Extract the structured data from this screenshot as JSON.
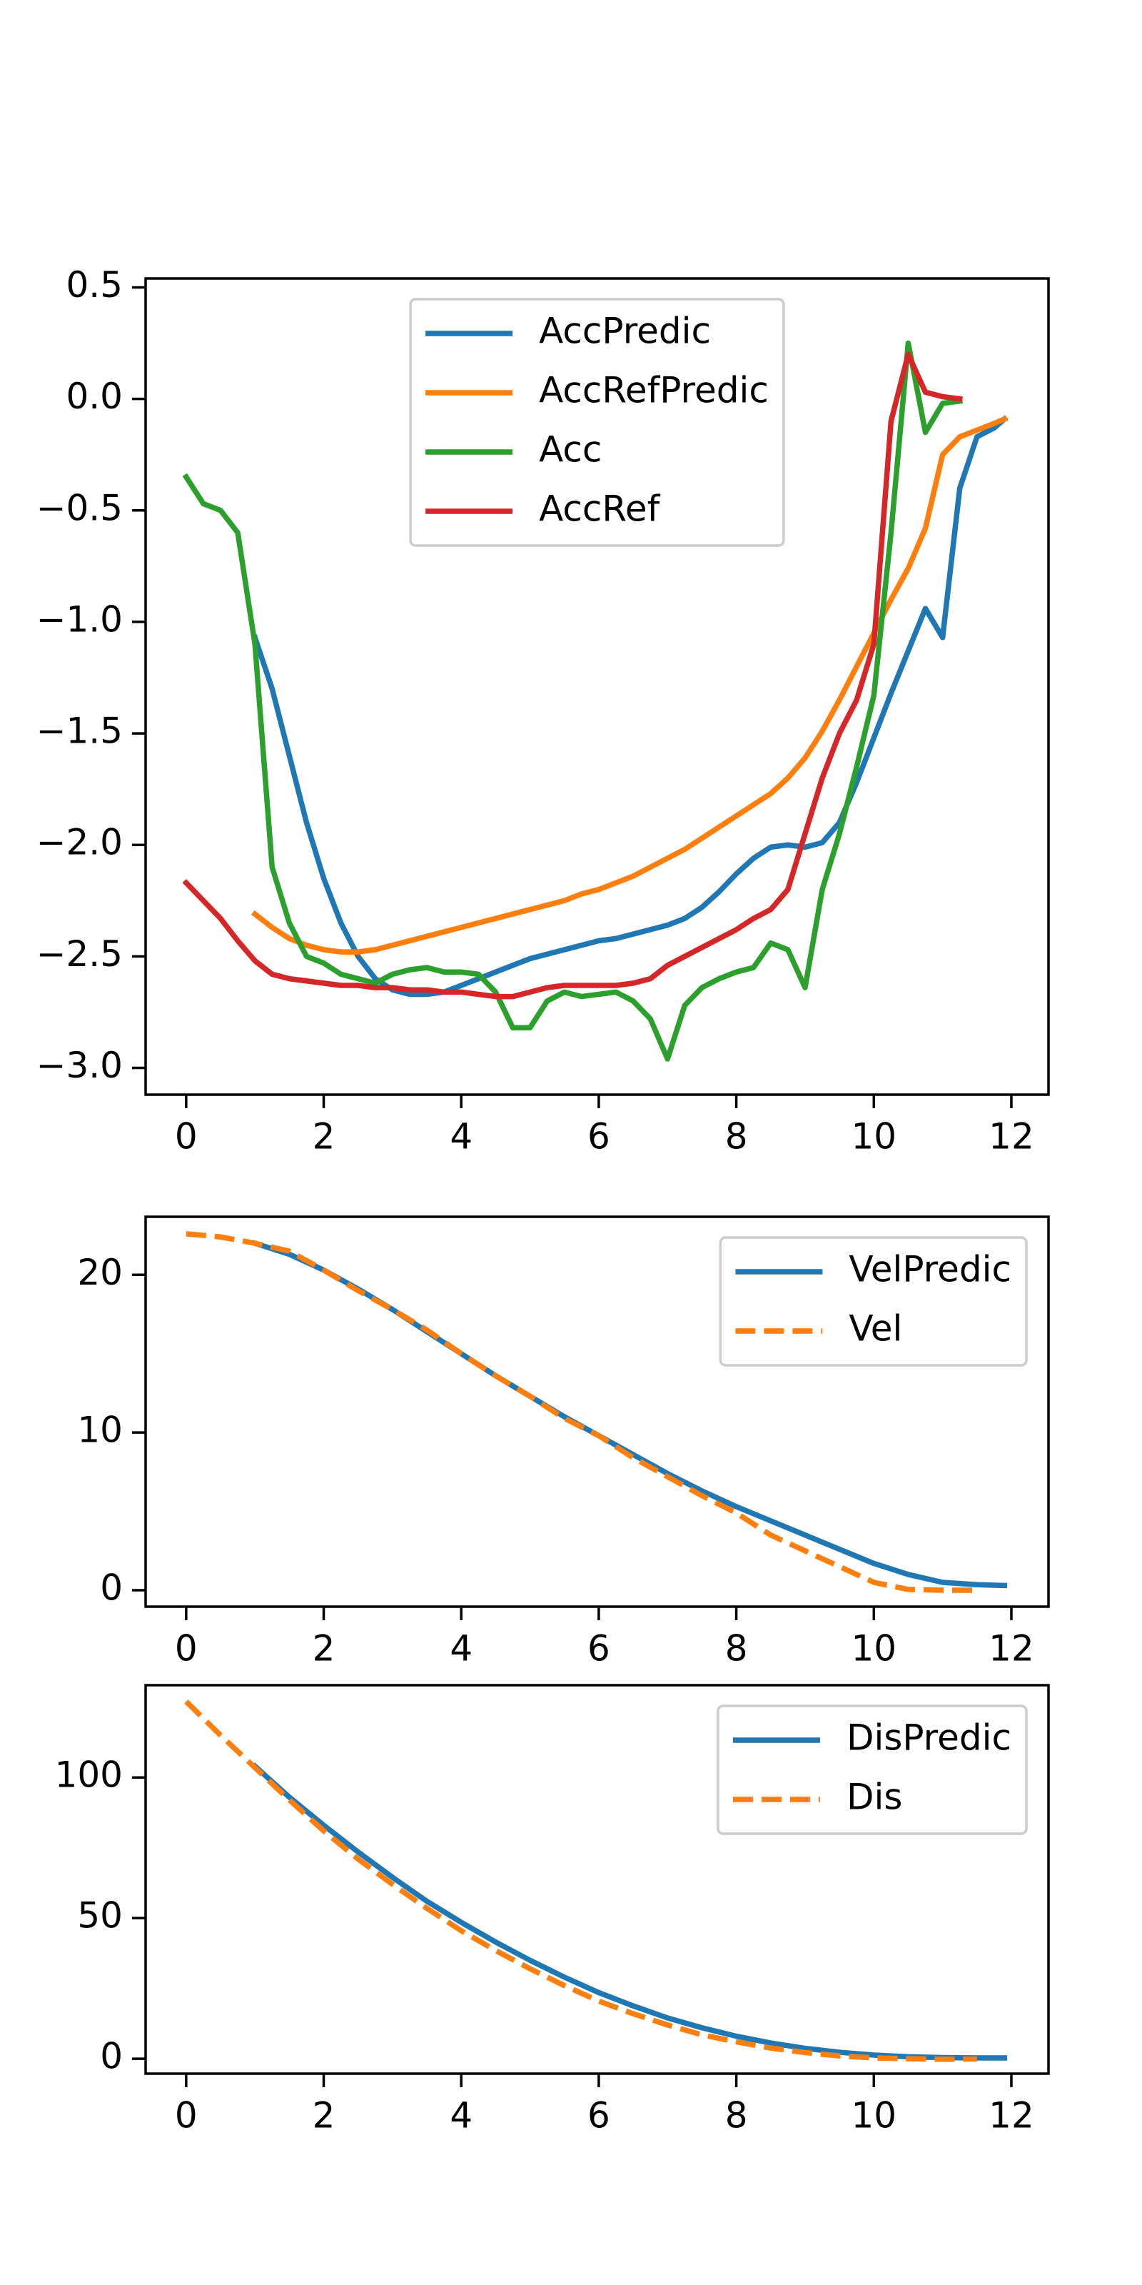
{
  "chart_data": [
    {
      "type": "line",
      "legend": "upper center",
      "x": [
        0,
        0.25,
        0.5,
        0.75,
        1,
        1.25,
        1.5,
        1.75,
        2,
        2.25,
        2.5,
        2.75,
        3,
        3.25,
        3.5,
        3.75,
        4,
        4.25,
        4.5,
        4.75,
        5,
        5.25,
        5.5,
        5.75,
        6,
        6.25,
        6.5,
        6.75,
        7,
        7.25,
        7.5,
        7.75,
        8,
        8.25,
        8.5,
        8.75,
        9,
        9.25,
        9.5,
        9.75,
        10,
        10.25,
        10.5,
        10.75,
        11,
        11.25,
        11.5,
        11.75,
        11.9
      ],
      "series": [
        {
          "name": "AccPredic",
          "color": "#1f77b4",
          "values": [
            null,
            null,
            null,
            null,
            -1.07,
            -1.3,
            -1.6,
            -1.9,
            -2.15,
            -2.35,
            -2.5,
            -2.6,
            -2.65,
            -2.67,
            -2.67,
            -2.66,
            -2.63,
            -2.6,
            -2.57,
            -2.54,
            -2.51,
            -2.49,
            -2.47,
            -2.45,
            -2.43,
            -2.42,
            -2.4,
            -2.38,
            -2.36,
            -2.33,
            -2.28,
            -2.21,
            -2.13,
            -2.06,
            -2.01,
            -2.0,
            -2.01,
            -1.99,
            -1.9,
            -1.72,
            -1.52,
            -1.32,
            -1.13,
            -0.94,
            -1.07,
            -0.4,
            -0.17,
            -0.13,
            -0.09
          ]
        },
        {
          "name": "AccRefPredic",
          "color": "#ff7f0e",
          "values": [
            null,
            null,
            null,
            null,
            -2.31,
            -2.37,
            -2.42,
            -2.45,
            -2.47,
            -2.48,
            -2.48,
            -2.47,
            -2.45,
            -2.43,
            -2.41,
            -2.39,
            -2.37,
            -2.35,
            -2.33,
            -2.31,
            -2.29,
            -2.27,
            -2.25,
            -2.22,
            -2.2,
            -2.17,
            -2.14,
            -2.1,
            -2.06,
            -2.02,
            -1.97,
            -1.92,
            -1.87,
            -1.82,
            -1.77,
            -1.7,
            -1.61,
            -1.49,
            -1.35,
            -1.2,
            -1.05,
            -0.9,
            -0.76,
            -0.58,
            -0.25,
            -0.17,
            -0.14,
            -0.11,
            -0.09
          ]
        },
        {
          "name": "Acc",
          "color": "#2ca02c",
          "values": [
            -0.35,
            -0.47,
            -0.5,
            -0.6,
            -1.1,
            -2.1,
            -2.35,
            -2.5,
            -2.53,
            -2.58,
            -2.6,
            -2.62,
            -2.58,
            -2.56,
            -2.55,
            -2.57,
            -2.57,
            -2.58,
            -2.66,
            -2.82,
            -2.82,
            -2.7,
            -2.66,
            -2.68,
            -2.67,
            -2.66,
            -2.7,
            -2.78,
            -2.96,
            -2.72,
            -2.64,
            -2.6,
            -2.57,
            -2.55,
            -2.44,
            -2.47,
            -2.64,
            -2.2,
            -1.95,
            -1.65,
            -1.33,
            -0.6,
            0.25,
            -0.15,
            -0.02,
            -0.01,
            null,
            null,
            null
          ]
        },
        {
          "name": "AccRef",
          "color": "#d62728",
          "values": [
            -2.17,
            -2.25,
            -2.33,
            -2.43,
            -2.52,
            -2.58,
            -2.6,
            -2.61,
            -2.62,
            -2.63,
            -2.63,
            -2.64,
            -2.64,
            -2.65,
            -2.65,
            -2.66,
            -2.66,
            -2.67,
            -2.68,
            -2.68,
            -2.66,
            -2.64,
            -2.63,
            -2.63,
            -2.63,
            -2.63,
            -2.62,
            -2.6,
            -2.54,
            -2.5,
            -2.46,
            -2.42,
            -2.38,
            -2.33,
            -2.29,
            -2.2,
            -1.95,
            -1.7,
            -1.5,
            -1.35,
            -1.1,
            -0.1,
            0.2,
            0.03,
            0.01,
            0.0,
            null,
            null,
            null
          ]
        }
      ],
      "xlim": [
        -0.59,
        12.54
      ],
      "xticks": [
        0,
        2,
        4,
        6,
        8,
        10,
        12
      ],
      "ylim": [
        -3.12,
        0.54
      ],
      "yticks": [
        {
          "value": -3,
          "label": "−3.0"
        },
        {
          "value": -2.5,
          "label": "−2.5"
        },
        {
          "value": -2,
          "label": "−2.0"
        },
        {
          "value": -1.5,
          "label": "−1.5"
        },
        {
          "value": -1,
          "label": "−1.0"
        },
        {
          "value": -0.5,
          "label": "−0.5"
        },
        {
          "value": 0,
          "label": "0.0"
        },
        0.5
      ]
    },
    {
      "type": "line",
      "legend": "upper right",
      "x": [
        0,
        0.5,
        1,
        1.5,
        2,
        2.5,
        3,
        3.5,
        4,
        4.5,
        5,
        5.5,
        6,
        6.5,
        7,
        7.5,
        8,
        8.5,
        9,
        9.5,
        10,
        10.5,
        11,
        11.5,
        11.9
      ],
      "series": [
        {
          "name": "VelPredic",
          "color": "#1f77b4",
          "linestyle": "solid",
          "values": [
            null,
            null,
            22.0,
            21.3,
            20.3,
            19.1,
            17.8,
            16.4,
            15.0,
            13.6,
            12.3,
            11.0,
            9.8,
            8.6,
            7.4,
            6.3,
            5.3,
            4.4,
            3.5,
            2.6,
            1.7,
            1.0,
            0.5,
            0.35,
            0.3
          ]
        },
        {
          "name": "Vel",
          "color": "#ff7f0e",
          "linestyle": "dashed",
          "values": [
            22.6,
            22.4,
            22.0,
            21.5,
            20.3,
            19.0,
            17.8,
            16.5,
            15.0,
            13.6,
            12.3,
            10.9,
            9.8,
            8.4,
            7.2,
            6.0,
            4.9,
            3.5,
            2.5,
            1.5,
            0.5,
            0.05,
            0.0,
            0.0,
            null
          ]
        }
      ],
      "xlim": [
        -0.59,
        12.54
      ],
      "xticks": [
        0,
        2,
        4,
        6,
        8,
        10,
        12
      ],
      "ylim": [
        -1.04,
        23.68
      ],
      "yticks": [
        0,
        10,
        20
      ]
    },
    {
      "type": "line",
      "legend": "upper right",
      "x": [
        0,
        0.5,
        1,
        1.5,
        2,
        2.5,
        3,
        3.5,
        4,
        4.5,
        5,
        5.5,
        6,
        6.5,
        7,
        7.5,
        8,
        8.5,
        9,
        9.5,
        10,
        10.5,
        11,
        11.5,
        11.9
      ],
      "series": [
        {
          "name": "DisPredic",
          "color": "#1f77b4",
          "linestyle": "solid",
          "values": [
            null,
            null,
            104,
            93,
            83,
            73.5,
            64.5,
            56,
            48.5,
            41.5,
            35,
            29,
            23.5,
            18.8,
            14.5,
            11,
            8,
            5.6,
            3.7,
            2.3,
            1.3,
            0.7,
            0.4,
            0.3,
            0.3
          ]
        },
        {
          "name": "Dis",
          "color": "#ff7f0e",
          "linestyle": "dashed",
          "values": [
            127,
            115,
            103.5,
            92,
            81,
            71,
            62,
            53.5,
            45.5,
            38.5,
            32,
            26,
            20.5,
            16,
            12,
            8.5,
            6,
            3.8,
            2.2,
            1.0,
            0.3,
            0.0,
            -0.2,
            -0.1,
            null
          ]
        }
      ],
      "xlim": [
        -0.59,
        12.54
      ],
      "xticks": [
        0,
        2,
        4,
        6,
        8,
        10,
        12
      ],
      "ylim": [
        -5.3,
        132.8
      ],
      "yticks": [
        0,
        50,
        100
      ]
    }
  ]
}
